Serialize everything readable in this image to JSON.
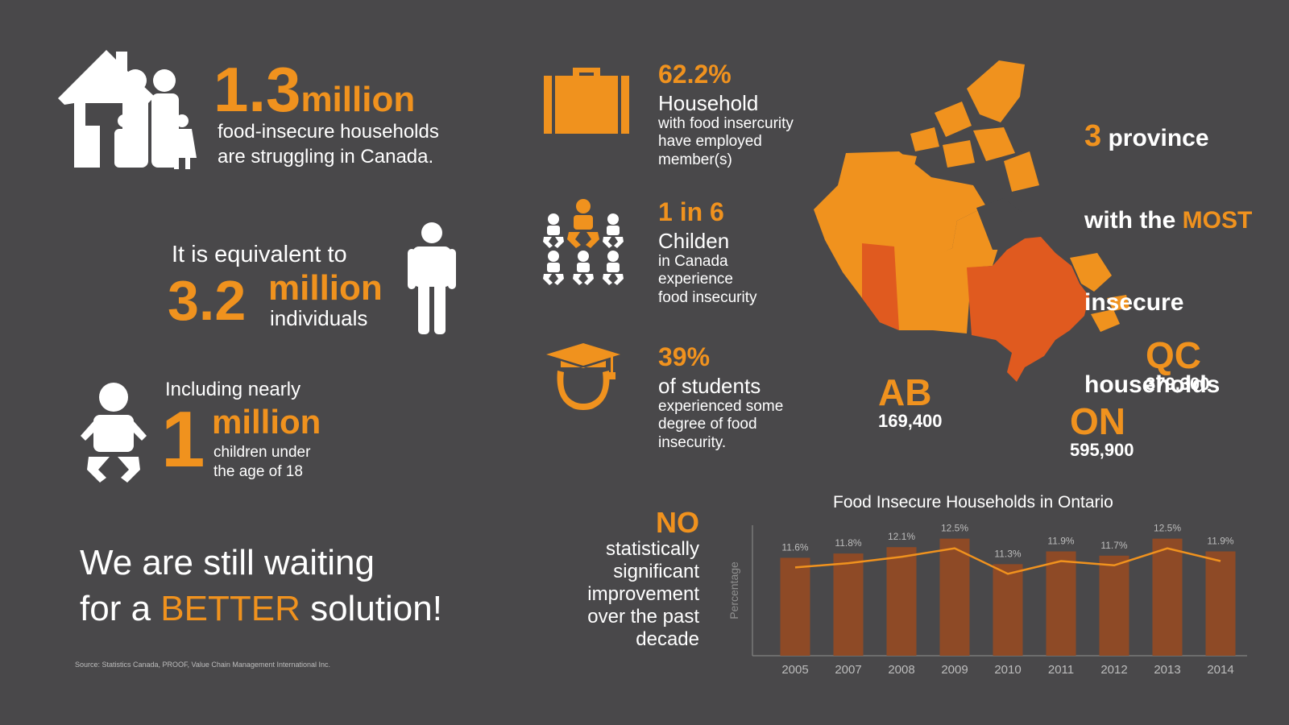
{
  "colors": {
    "background": "#49484a",
    "accent": "#f0921e",
    "highlight": "#e05a1f",
    "bar": "#8e4a26",
    "text": "#ffffff"
  },
  "households": {
    "number": "1.3",
    "unit": "million",
    "line1": "food-insecure households",
    "line2": "are struggling in Canada."
  },
  "individuals": {
    "intro": "It is equivalent to",
    "number": "3.2",
    "unit": "million",
    "label": "individuals"
  },
  "children": {
    "intro": "Including nearly",
    "number": "1",
    "unit": "million",
    "line1": "children under",
    "line2": "the age of 18"
  },
  "closing": {
    "line1": "We are still waiting",
    "line2_pre": "for a ",
    "line2_emph": "BETTER",
    "line2_post": " solution!"
  },
  "source": "Source: Statistics Canada, PROOF, Value Chain Management International Inc.",
  "stats": [
    {
      "icon": "briefcase-icon",
      "value": "62.2%",
      "title": "Household",
      "lines": [
        "with food insercurity",
        "have employed",
        "member(s)"
      ]
    },
    {
      "icon": "children-group-icon",
      "value": "1 in 6",
      "title": "Childen",
      "lines": [
        "in Canada",
        "experience",
        "food insecurity"
      ]
    },
    {
      "icon": "graduate-icon",
      "value": "39%",
      "title": "of students",
      "lines": [
        "experienced some",
        "degree of food",
        "insecurity."
      ]
    }
  ],
  "provinces_heading": {
    "number": "3",
    "line1_rest": " province",
    "line2_pre": "with the ",
    "line2_emph": "MOST",
    "line3": "insecure",
    "line4": "households"
  },
  "provinces": [
    {
      "code": "AB",
      "value": "169,400"
    },
    {
      "code": "QC",
      "value": "379,300"
    },
    {
      "code": "ON",
      "value": "595,900"
    }
  ],
  "no_improvement": {
    "emph": "NO",
    "lines": [
      "statistically",
      "significant",
      "improvement",
      "over the past",
      "decade"
    ]
  },
  "chart_data": {
    "type": "bar",
    "title": "Food Insecure Households in Ontario",
    "ylabel": "Percentage",
    "xlabel": "",
    "categories": [
      "2005",
      "2007",
      "2008",
      "2009",
      "2010",
      "2011",
      "2012",
      "2013",
      "2014"
    ],
    "values": [
      11.6,
      11.8,
      12.1,
      12.5,
      11.3,
      11.9,
      11.7,
      12.5,
      11.9
    ],
    "value_labels": [
      "11.6%",
      "11.8%",
      "12.1%",
      "12.5%",
      "11.3%",
      "11.9%",
      "11.7%",
      "12.5%",
      "11.9%"
    ],
    "overlay_line": true,
    "grid": false
  }
}
